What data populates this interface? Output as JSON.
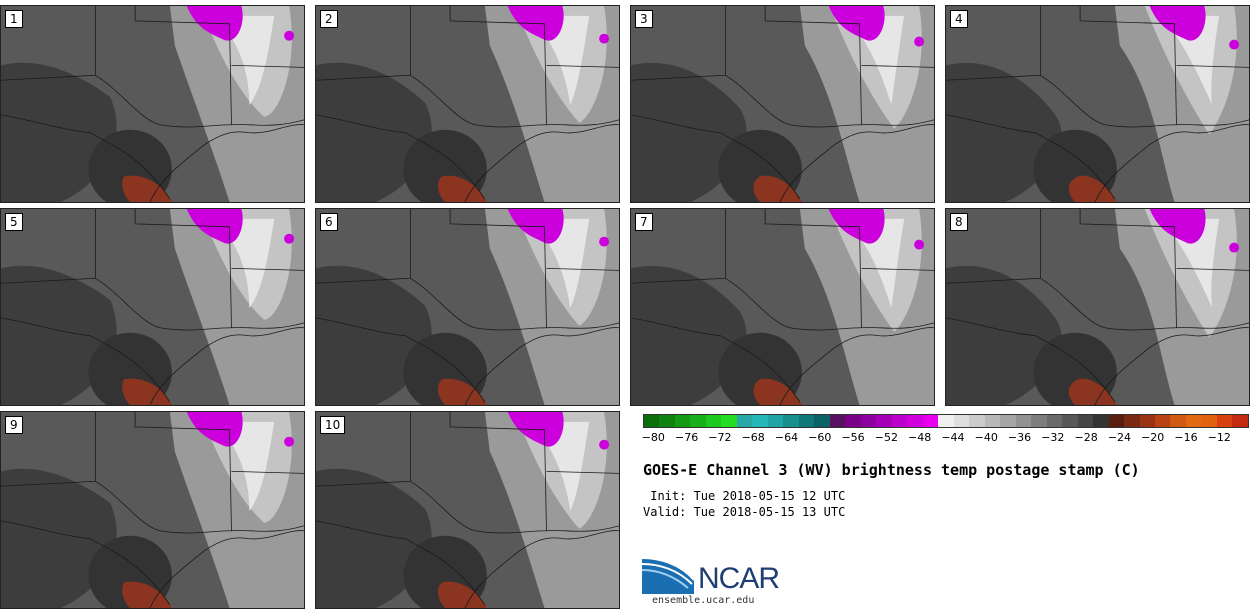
{
  "panels": [
    "1",
    "2",
    "3",
    "4",
    "5",
    "6",
    "7",
    "8",
    "9",
    "10"
  ],
  "legend": {
    "ticks": [
      "−80",
      "−76",
      "−72",
      "−68",
      "−64",
      "−60",
      "−56",
      "−52",
      "−48",
      "−44",
      "−40",
      "−36",
      "−32",
      "−28",
      "−24",
      "−20",
      "−16",
      "−12"
    ],
    "colors": [
      "#0b6e0b",
      "#0f820f",
      "#149a14",
      "#19b019",
      "#1fc81f",
      "#25dd25",
      "#2aa8a8",
      "#26b8b8",
      "#1fa5a5",
      "#178f8f",
      "#107878",
      "#0b6262",
      "#5a1060",
      "#7a0088",
      "#8e00a0",
      "#a400b8",
      "#bd00cc",
      "#d100de",
      "#e800ee",
      "#f0f0f0",
      "#dedede",
      "#cbcbcb",
      "#b8b8b8",
      "#a5a5a5",
      "#929292",
      "#7e7e7e",
      "#6b6b6b",
      "#585858",
      "#464646",
      "#343434",
      "#5a1e10",
      "#7a2a12",
      "#9a3414",
      "#b84414",
      "#d05a14",
      "#e06a10",
      "#e26212",
      "#d84010",
      "#c42a10"
    ]
  },
  "title": "GOES-E Channel 3 (WV) brightness temp postage stamp (C)",
  "init_label": " Init: Tue 2018-05-15 12 UTC",
  "valid_label": "Valid: Tue 2018-05-15 13 UTC",
  "logo": {
    "word": "NCAR",
    "url": "ensemble.ucar.edu"
  },
  "colors": {
    "magenta": "#cc00dd",
    "red_brown": "#8b3420",
    "dark": "#333333",
    "mid": "#595959",
    "light": "#9a9a9a",
    "bright": "#e6e6e6"
  }
}
